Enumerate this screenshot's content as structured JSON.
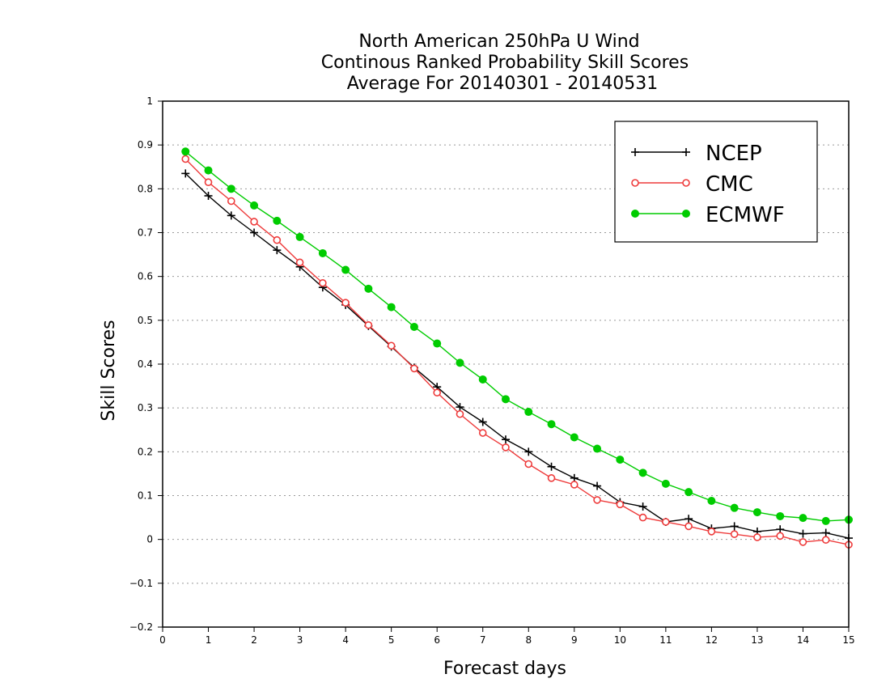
{
  "chart_data": {
    "type": "line",
    "title_lines": [
      "North American 250hPa U Wind",
      "Continous Ranked Probability Skill Scores",
      "Average For 20140301 - 20140531"
    ],
    "xlabel": "Forecast days",
    "ylabel": "Skill Scores",
    "xlim": [
      0,
      15
    ],
    "ylim": [
      -0.2,
      1
    ],
    "x_ticks": [
      "0",
      "1",
      "2",
      "3",
      "4",
      "5",
      "6",
      "7",
      "8",
      "9",
      "10",
      "11",
      "12",
      "13",
      "14",
      "15"
    ],
    "y_ticks": [
      "−0.2",
      "−0.1",
      "0",
      "0.1",
      "0.2",
      "0.3",
      "0.4",
      "0.5",
      "0.6",
      "0.7",
      "0.8",
      "0.9",
      "1"
    ],
    "grid": "horizontal dotted",
    "legend_position": "top-right",
    "x": [
      0.5,
      1,
      1.5,
      2,
      2.5,
      3,
      3.5,
      4,
      4.5,
      5,
      5.5,
      6,
      6.5,
      7,
      7.5,
      8,
      8.5,
      9,
      9.5,
      10,
      10.5,
      11,
      11.5,
      12,
      12.5,
      13,
      13.5,
      14,
      14.5,
      15
    ],
    "series": [
      {
        "name": "NCEP",
        "color": "#000000",
        "marker": "plus",
        "values": [
          0.835,
          0.784,
          0.739,
          0.7,
          0.66,
          0.622,
          0.575,
          0.535,
          0.487,
          0.44,
          0.392,
          0.348,
          0.302,
          0.268,
          0.228,
          0.2,
          0.166,
          0.14,
          0.122,
          0.085,
          0.075,
          0.04,
          0.047,
          0.025,
          0.03,
          0.018,
          0.023,
          0.013,
          0.015,
          0.003
        ]
      },
      {
        "name": "CMC",
        "color": "#ee3b3b",
        "marker": "open-circle",
        "values": [
          0.868,
          0.815,
          0.772,
          0.725,
          0.683,
          0.632,
          0.585,
          0.54,
          0.489,
          0.442,
          0.39,
          0.335,
          0.286,
          0.243,
          0.21,
          0.172,
          0.14,
          0.125,
          0.09,
          0.08,
          0.05,
          0.04,
          0.03,
          0.018,
          0.012,
          0.005,
          0.008,
          -0.006,
          -0.001,
          -0.012
        ]
      },
      {
        "name": "ECMWF",
        "color": "#00cc00",
        "marker": "filled-circle",
        "values": [
          0.885,
          0.842,
          0.8,
          0.762,
          0.727,
          0.69,
          0.653,
          0.615,
          0.572,
          0.53,
          0.485,
          0.447,
          0.403,
          0.365,
          0.32,
          0.291,
          0.263,
          0.233,
          0.207,
          0.182,
          0.152,
          0.127,
          0.108,
          0.088,
          0.072,
          0.062,
          0.053,
          0.049,
          0.042,
          0.045
        ]
      }
    ]
  }
}
